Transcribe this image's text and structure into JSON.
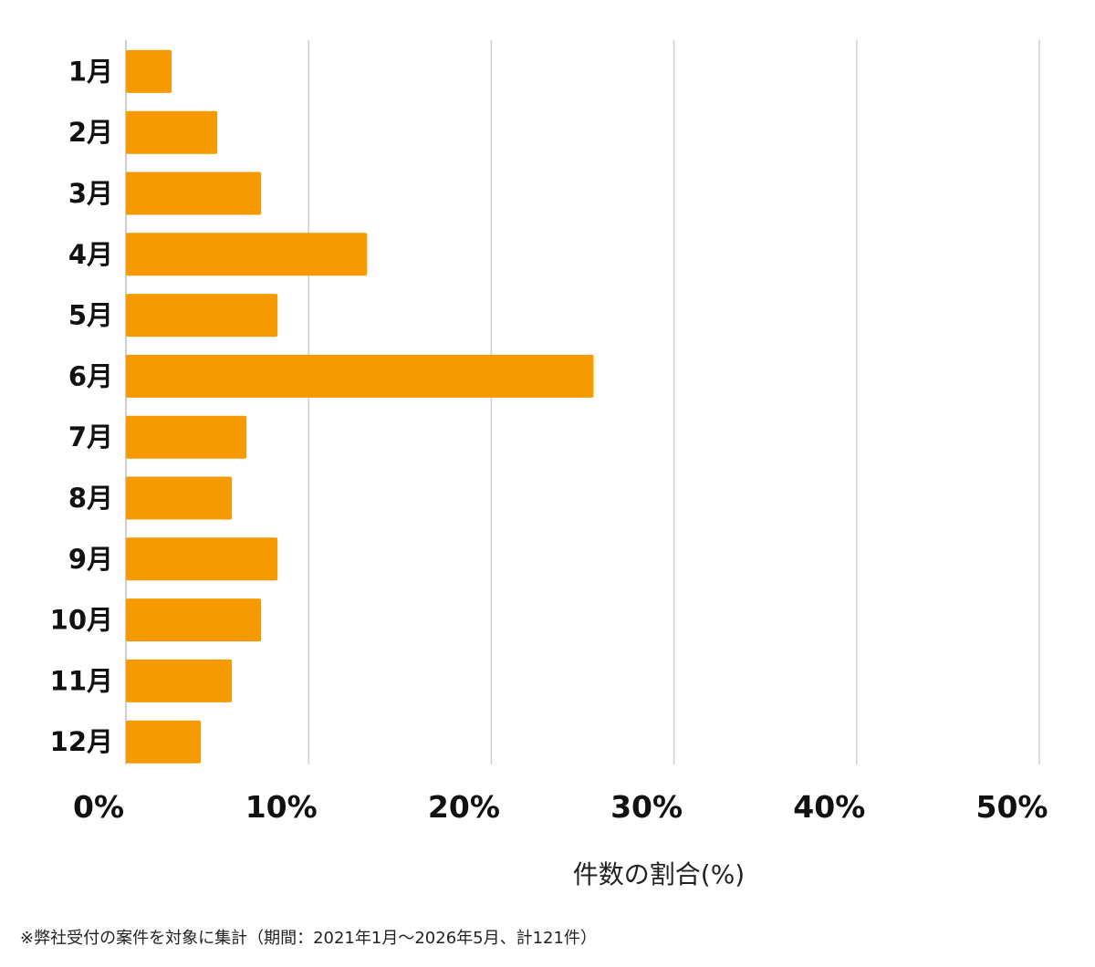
{
  "chart_data": {
    "type": "bar",
    "orientation": "horizontal",
    "categories": [
      "1月",
      "2月",
      "3月",
      "4月",
      "5月",
      "6月",
      "7月",
      "8月",
      "9月",
      "10月",
      "11月",
      "12月"
    ],
    "values": [
      2.5,
      5.0,
      7.4,
      13.2,
      8.3,
      25.6,
      6.6,
      5.8,
      8.3,
      7.4,
      5.8,
      4.1
    ],
    "xlim": [
      0,
      50
    ],
    "x_ticks": [
      0,
      10,
      20,
      30,
      40,
      50
    ],
    "tick_labels": [
      "0%",
      "10%",
      "20%",
      "30%",
      "40%",
      "50%"
    ],
    "xlabel": "件数の割合(%)",
    "grid": true,
    "bar_color": "#F59A00"
  },
  "footnote": "※弊社受付の案件を対象に集計（期間：2021年1月〜2026年5月、計121件）"
}
